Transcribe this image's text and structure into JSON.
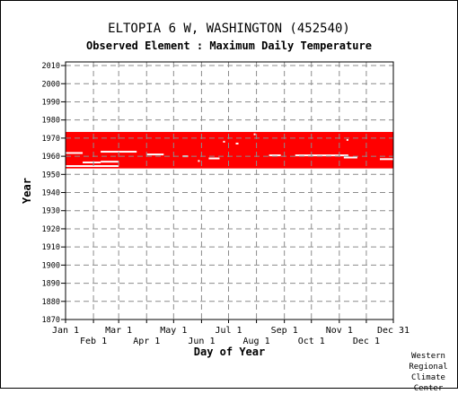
{
  "header": {
    "title": "ELTOPIA 6 W, WASHINGTON   (452540)",
    "subtitle": "Observed Element : Maximum Daily Temperature"
  },
  "credit": {
    "line1": "Western",
    "line2": "Regional",
    "line3": "Climate",
    "line4": "Center"
  },
  "chart_data": {
    "type": "heatmap",
    "title": "ELTOPIA 6 W, WASHINGTON   (452540)",
    "subtitle": "Observed Element : Maximum Daily Temperature",
    "xlabel": "Day of Year",
    "ylabel": "Year",
    "x_ticks_top_row": [
      "Jan 1",
      "Mar 1",
      "May 1",
      "Jul 1",
      "Sep 1",
      "Nov 1",
      "Dec 31"
    ],
    "x_ticks_bottom_row": [
      "Feb 1",
      "Apr 1",
      "Jun 1",
      "Aug 1",
      "Oct 1",
      "Dec 1"
    ],
    "x_tick_days": [
      1,
      32,
      60,
      91,
      121,
      152,
      182,
      213,
      244,
      274,
      305,
      335,
      365
    ],
    "y_ticks": [
      1870,
      1880,
      1890,
      1900,
      1910,
      1920,
      1930,
      1940,
      1950,
      1960,
      1970,
      1980,
      1990,
      2000,
      2010
    ],
    "xlim": [
      1,
      365
    ],
    "ylim": [
      1870,
      2012
    ],
    "grid": true,
    "data_color": "#ff0000",
    "observed_periods": [
      {
        "start_year": 1953.3,
        "end_year": 1973.4,
        "start_day": 1,
        "end_day": 365
      }
    ],
    "missing_segments": [
      {
        "year": 1954.6,
        "start_day": 1,
        "end_day": 60
      },
      {
        "year": 1956.6,
        "start_day": 20,
        "end_day": 40
      },
      {
        "year": 1957.0,
        "start_day": 40,
        "end_day": 60
      },
      {
        "year": 1961.8,
        "start_day": 1,
        "end_day": 20
      },
      {
        "year": 1962.5,
        "start_day": 40,
        "end_day": 80
      },
      {
        "year": 1961.0,
        "start_day": 91,
        "end_day": 110
      },
      {
        "year": 1960.0,
        "start_day": 131,
        "end_day": 137
      },
      {
        "year": 1958.8,
        "start_day": 160,
        "end_day": 172
      },
      {
        "year": 1957.4,
        "start_day": 148,
        "end_day": 150
      },
      {
        "year": 1968.0,
        "start_day": 176,
        "end_day": 178
      },
      {
        "year": 1967.0,
        "start_day": 190,
        "end_day": 193
      },
      {
        "year": 1960.5,
        "start_day": 227,
        "end_day": 240
      },
      {
        "year": 1960.5,
        "start_day": 256,
        "end_day": 315
      },
      {
        "year": 1959.3,
        "start_day": 310,
        "end_day": 325
      },
      {
        "year": 1958.4,
        "start_day": 350,
        "end_day": 365
      },
      {
        "year": 1969.0,
        "start_day": 313,
        "end_day": 315
      },
      {
        "year": 1972.1,
        "start_day": 210,
        "end_day": 212
      }
    ]
  }
}
